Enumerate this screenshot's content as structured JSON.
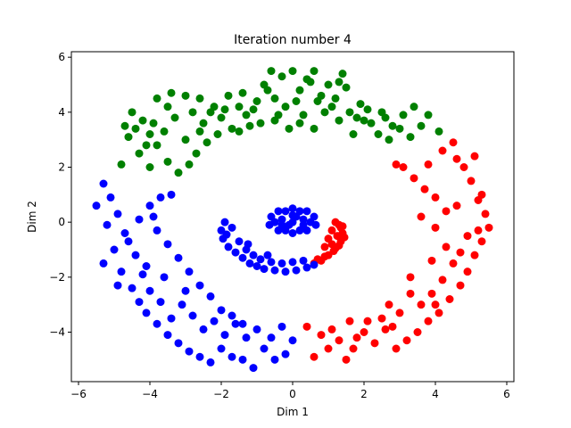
{
  "chart_data": {
    "type": "scatter",
    "title": "Iteration number 4",
    "xlabel": "Dim 1",
    "ylabel": "Dim 2",
    "xlim": [
      -6.2,
      6.2
    ],
    "ylim": [
      -5.8,
      6.2
    ],
    "xticks": [
      -6,
      -4,
      -2,
      0,
      2,
      4,
      6
    ],
    "yticks": [
      -4,
      -2,
      0,
      2,
      4,
      6
    ],
    "xtick_labels": [
      "−6",
      "−4",
      "−2",
      "0",
      "2",
      "4",
      "6"
    ],
    "ytick_labels": [
      "−4",
      "−2",
      "0",
      "2",
      "4",
      "6"
    ],
    "grid": false,
    "series": [
      {
        "color": "#008000",
        "points": [
          [
            -4.5,
            4.0
          ],
          [
            -4.2,
            3.7
          ],
          [
            -4.0,
            3.2
          ],
          [
            -3.8,
            4.5
          ],
          [
            -3.5,
            4.2
          ],
          [
            -3.3,
            3.8
          ],
          [
            -3.0,
            4.6
          ],
          [
            -2.8,
            4.0
          ],
          [
            -2.5,
            3.6
          ],
          [
            -2.2,
            4.2
          ],
          [
            -2.0,
            3.8
          ],
          [
            -1.8,
            4.6
          ],
          [
            -1.5,
            4.2
          ],
          [
            -1.2,
            3.5
          ],
          [
            -1.0,
            4.4
          ],
          [
            -0.8,
            5.0
          ],
          [
            -0.5,
            4.5
          ],
          [
            -0.3,
            5.3
          ],
          [
            0.0,
            5.5
          ],
          [
            0.2,
            4.8
          ],
          [
            0.4,
            5.2
          ],
          [
            0.7,
            4.4
          ],
          [
            1.0,
            5.0
          ],
          [
            1.2,
            4.5
          ],
          [
            1.4,
            5.4
          ],
          [
            1.6,
            4.0
          ],
          [
            1.9,
            4.3
          ],
          [
            2.2,
            3.6
          ],
          [
            2.5,
            4.0
          ],
          [
            2.8,
            3.5
          ],
          [
            3.1,
            3.9
          ],
          [
            3.4,
            4.2
          ],
          [
            3.6,
            3.5
          ],
          [
            3.8,
            3.9
          ],
          [
            4.1,
            3.3
          ],
          [
            -4.3,
            2.5
          ],
          [
            -4.0,
            2.0
          ],
          [
            -3.8,
            2.8
          ],
          [
            -3.5,
            2.2
          ],
          [
            -3.2,
            1.8
          ],
          [
            -3.0,
            3.0
          ],
          [
            -2.7,
            2.5
          ],
          [
            -2.4,
            2.9
          ],
          [
            -2.1,
            3.2
          ],
          [
            -1.7,
            3.4
          ],
          [
            -1.3,
            3.9
          ],
          [
            -0.9,
            3.6
          ],
          [
            -0.5,
            3.7
          ],
          [
            -0.1,
            3.4
          ],
          [
            0.3,
            3.9
          ],
          [
            0.6,
            3.4
          ],
          [
            0.9,
            4.0
          ],
          [
            1.3,
            3.7
          ],
          [
            1.7,
            3.2
          ],
          [
            2.0,
            3.7
          ],
          [
            2.4,
            3.2
          ],
          [
            2.7,
            3.0
          ],
          [
            3.0,
            3.4
          ],
          [
            3.3,
            3.1
          ],
          [
            -4.6,
            3.1
          ],
          [
            -4.4,
            3.4
          ],
          [
            -4.1,
            2.8
          ],
          [
            -3.9,
            3.6
          ],
          [
            -3.6,
            3.3
          ],
          [
            -2.9,
            2.1
          ],
          [
            -2.6,
            3.3
          ],
          [
            -2.3,
            4.0
          ],
          [
            -1.9,
            4.1
          ],
          [
            -1.5,
            3.3
          ],
          [
            -1.1,
            4.1
          ],
          [
            -0.7,
            4.8
          ],
          [
            -0.2,
            4.2
          ],
          [
            0.1,
            4.4
          ],
          [
            0.5,
            5.1
          ],
          [
            0.8,
            4.6
          ],
          [
            1.1,
            4.2
          ],
          [
            1.5,
            4.9
          ],
          [
            1.8,
            3.8
          ],
          [
            2.1,
            4.1
          ],
          [
            2.6,
            3.8
          ],
          [
            -3.4,
            4.7
          ],
          [
            -2.6,
            4.5
          ],
          [
            -1.4,
            4.7
          ],
          [
            -0.6,
            5.5
          ],
          [
            0.6,
            5.5
          ],
          [
            1.3,
            5.1
          ],
          [
            -4.8,
            2.1
          ],
          [
            -4.7,
            3.5
          ],
          [
            -0.4,
            3.9
          ],
          [
            0.2,
            3.6
          ]
        ]
      },
      {
        "color": "#ff0000",
        "points": [
          [
            3.8,
            2.1
          ],
          [
            4.2,
            2.6
          ],
          [
            4.5,
            2.9
          ],
          [
            4.8,
            2.0
          ],
          [
            5.0,
            1.5
          ],
          [
            5.2,
            0.8
          ],
          [
            5.4,
            0.3
          ],
          [
            5.5,
            -0.2
          ],
          [
            5.3,
            -0.7
          ],
          [
            5.1,
            -1.2
          ],
          [
            4.9,
            -1.8
          ],
          [
            4.7,
            -2.3
          ],
          [
            4.4,
            -2.8
          ],
          [
            4.1,
            -3.3
          ],
          [
            3.8,
            -3.6
          ],
          [
            3.5,
            -4.0
          ],
          [
            3.2,
            -4.3
          ],
          [
            2.9,
            -4.6
          ],
          [
            2.6,
            -3.9
          ],
          [
            2.3,
            -4.4
          ],
          [
            2.0,
            -4.0
          ],
          [
            1.7,
            -4.6
          ],
          [
            1.5,
            -5.0
          ],
          [
            1.3,
            -4.3
          ],
          [
            1.0,
            -4.6
          ],
          [
            0.8,
            -4.1
          ],
          [
            0.6,
            -4.9
          ],
          [
            0.4,
            -3.8
          ],
          [
            3.1,
            2.0
          ],
          [
            3.4,
            1.6
          ],
          [
            3.7,
            1.2
          ],
          [
            4.0,
            0.9
          ],
          [
            4.3,
            0.4
          ],
          [
            4.0,
            -0.2
          ],
          [
            4.3,
            -0.9
          ],
          [
            4.5,
            -1.5
          ],
          [
            4.2,
            -2.1
          ],
          [
            3.9,
            -2.6
          ],
          [
            3.6,
            -3.0
          ],
          [
            3.3,
            -2.6
          ],
          [
            3.0,
            -3.3
          ],
          [
            2.7,
            -3.0
          ],
          [
            2.5,
            -3.5
          ],
          [
            2.1,
            -3.6
          ],
          [
            1.8,
            -4.2
          ],
          [
            1.1,
            -3.9
          ],
          [
            5.1,
            2.4
          ],
          [
            5.3,
            1.0
          ],
          [
            4.6,
            2.3
          ],
          [
            4.9,
            -0.5
          ],
          [
            5.2,
            -0.3
          ],
          [
            4.7,
            -1.1
          ],
          [
            3.6,
            0.2
          ],
          [
            3.9,
            -1.4
          ],
          [
            2.9,
            2.1
          ],
          [
            4.6,
            0.6
          ],
          [
            3.3,
            -2.0
          ],
          [
            4.0,
            -3.0
          ],
          [
            1.6,
            -3.6
          ],
          [
            2.8,
            -3.8
          ],
          [
            0.9,
            -0.9
          ],
          [
            1.0,
            -0.6
          ],
          [
            1.1,
            -0.3
          ],
          [
            1.2,
            0.0
          ],
          [
            1.3,
            -0.1
          ],
          [
            1.4,
            -0.4
          ],
          [
            1.35,
            -0.7
          ],
          [
            1.2,
            -0.95
          ],
          [
            1.0,
            -1.2
          ],
          [
            0.8,
            -1.4
          ],
          [
            0.6,
            -1.5
          ],
          [
            1.1,
            -0.8
          ],
          [
            1.25,
            -0.5
          ],
          [
            1.35,
            -0.2
          ],
          [
            0.9,
            -1.25
          ],
          [
            0.7,
            -1.35
          ],
          [
            1.15,
            -1.05
          ],
          [
            1.3,
            -0.85
          ],
          [
            1.45,
            -0.55
          ],
          [
            1.4,
            -0.15
          ]
        ]
      },
      {
        "color": "#0000ff",
        "points": [
          [
            -5.5,
            0.6
          ],
          [
            -5.3,
            1.4
          ],
          [
            -5.1,
            0.9
          ],
          [
            -4.9,
            0.3
          ],
          [
            -4.7,
            -0.4
          ],
          [
            -5.0,
            -1.0
          ],
          [
            -5.3,
            -1.5
          ],
          [
            -4.8,
            -1.8
          ],
          [
            -4.5,
            -2.4
          ],
          [
            -4.3,
            -2.9
          ],
          [
            -4.1,
            -3.3
          ],
          [
            -3.8,
            -3.7
          ],
          [
            -3.5,
            -4.1
          ],
          [
            -3.2,
            -4.4
          ],
          [
            -2.9,
            -4.7
          ],
          [
            -2.6,
            -4.9
          ],
          [
            -2.3,
            -5.1
          ],
          [
            -2.0,
            -4.6
          ],
          [
            -1.7,
            -4.9
          ],
          [
            -1.4,
            -5.0
          ],
          [
            -1.1,
            -5.3
          ],
          [
            -0.8,
            -4.6
          ],
          [
            -0.5,
            -5.0
          ],
          [
            -0.2,
            -4.8
          ],
          [
            0.0,
            -4.3
          ],
          [
            -0.3,
            -3.8
          ],
          [
            -0.6,
            -4.2
          ],
          [
            -1.0,
            -3.9
          ],
          [
            -1.3,
            -4.2
          ],
          [
            -1.6,
            -3.7
          ],
          [
            -1.9,
            -4.1
          ],
          [
            -2.2,
            -3.6
          ],
          [
            -2.5,
            -3.9
          ],
          [
            -2.8,
            -3.4
          ],
          [
            -3.1,
            -3.0
          ],
          [
            -3.4,
            -3.5
          ],
          [
            -3.7,
            -2.9
          ],
          [
            -4.0,
            -2.5
          ],
          [
            -4.2,
            -1.9
          ],
          [
            -4.4,
            -1.2
          ],
          [
            -4.6,
            -0.7
          ],
          [
            -4.3,
            0.1
          ],
          [
            -4.0,
            0.6
          ],
          [
            -3.7,
            0.9
          ],
          [
            -3.4,
            1.0
          ],
          [
            -3.8,
            -0.3
          ],
          [
            -3.5,
            -0.8
          ],
          [
            -3.2,
            -1.3
          ],
          [
            -2.9,
            -1.8
          ],
          [
            -2.6,
            -2.3
          ],
          [
            -2.3,
            -2.7
          ],
          [
            -2.0,
            -3.2
          ],
          [
            -1.7,
            -3.4
          ],
          [
            -1.4,
            -3.7
          ],
          [
            -3.0,
            -2.5
          ],
          [
            -3.6,
            -2.0
          ],
          [
            -4.1,
            -1.6
          ],
          [
            -3.9,
            0.2
          ],
          [
            -5.2,
            -0.1
          ],
          [
            -4.9,
            -2.3
          ],
          [
            -1.9,
            0.0
          ],
          [
            -2.0,
            -0.3
          ],
          [
            -1.95,
            -0.6
          ],
          [
            -1.8,
            -0.9
          ],
          [
            -1.6,
            -1.1
          ],
          [
            -1.4,
            -1.3
          ],
          [
            -1.2,
            -1.5
          ],
          [
            -1.0,
            -1.6
          ],
          [
            -0.8,
            -1.7
          ],
          [
            -0.5,
            -1.75
          ],
          [
            -0.2,
            -1.8
          ],
          [
            0.1,
            -1.75
          ],
          [
            0.4,
            -1.65
          ],
          [
            0.6,
            -1.55
          ],
          [
            -1.7,
            -0.2
          ],
          [
            -1.5,
            -0.7
          ],
          [
            -1.3,
            -1.0
          ],
          [
            -1.1,
            -1.2
          ],
          [
            -0.9,
            -1.35
          ],
          [
            -0.6,
            -1.45
          ],
          [
            -0.3,
            -1.5
          ],
          [
            0.0,
            -1.45
          ],
          [
            0.3,
            -1.4
          ],
          [
            -1.85,
            -0.45
          ],
          [
            -1.25,
            -0.8
          ],
          [
            -0.7,
            -1.2
          ],
          [
            0.0,
            0.0
          ],
          [
            0.3,
            0.1
          ],
          [
            -0.3,
            0.1
          ],
          [
            0.5,
            0.0
          ],
          [
            -0.5,
            0.0
          ],
          [
            0.2,
            0.4
          ],
          [
            -0.2,
            0.4
          ],
          [
            0.2,
            -0.3
          ],
          [
            -0.2,
            -0.3
          ],
          [
            0.0,
            0.5
          ],
          [
            0.0,
            -0.4
          ],
          [
            0.6,
            0.2
          ],
          [
            -0.6,
            0.2
          ],
          [
            0.4,
            0.4
          ],
          [
            -0.4,
            0.4
          ],
          [
            0.4,
            -0.3
          ],
          [
            -0.4,
            -0.3
          ],
          [
            0.65,
            -0.1
          ],
          [
            -0.65,
            -0.1
          ],
          [
            0.1,
            0.2
          ],
          [
            -0.1,
            -0.1
          ],
          [
            0.3,
            -0.1
          ],
          [
            -0.3,
            -0.1
          ],
          [
            0.0,
            0.25
          ]
        ]
      }
    ]
  }
}
